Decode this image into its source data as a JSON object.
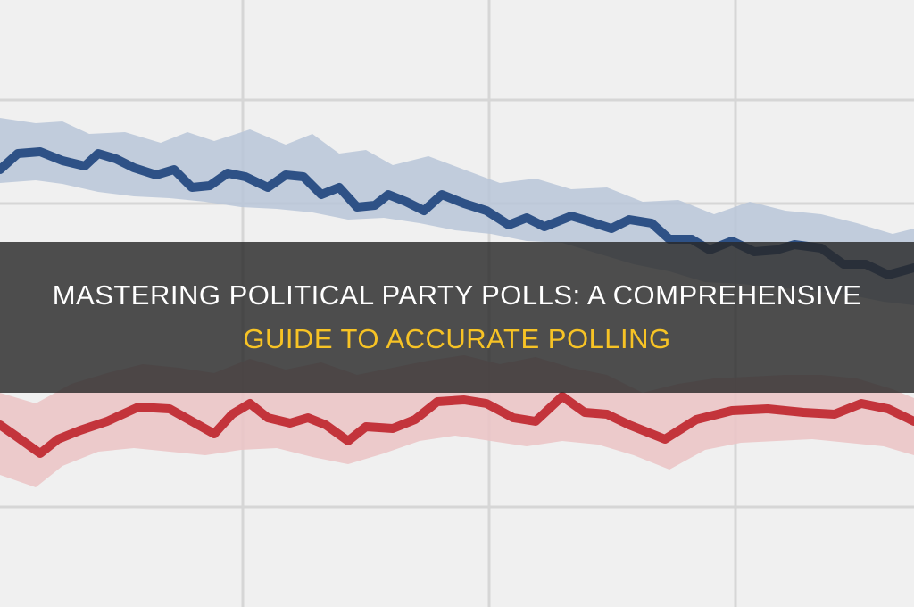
{
  "title": {
    "line1": "MASTERING POLITICAL PARTY POLLS: A COMPREHENSIVE",
    "line2": "GUIDE TO ACCURATE POLLING",
    "color_line1": "#ffffff",
    "color_line2": "#f7c325"
  },
  "band_color": "#282828",
  "series_colors": {
    "blue_line": "#2e5186",
    "blue_band": "#b9c5d8",
    "red_line": "#c3343b",
    "red_band": "#ebc5c7"
  },
  "grid": true
}
